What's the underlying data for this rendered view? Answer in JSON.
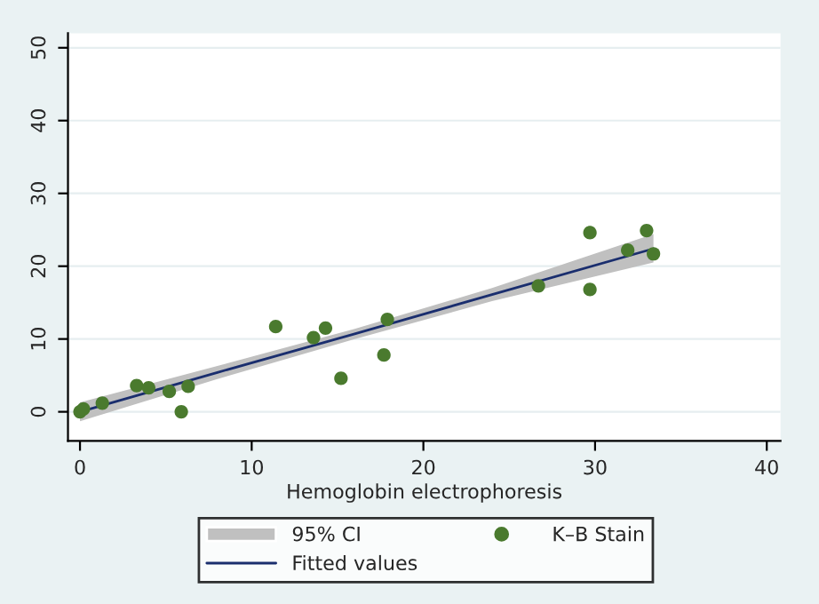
{
  "chart_data": {
    "type": "scatter",
    "xlabel": "Hemoglobin electrophoresis",
    "xlim": [
      -0.7,
      40.8
    ],
    "ylim": [
      -4,
      52
    ],
    "xticks": [
      0,
      10,
      20,
      30,
      40
    ],
    "yticks": [
      0,
      10,
      20,
      30,
      40,
      50
    ],
    "grid": "y",
    "legend": "bottom",
    "annotations": [
      "95% CI"
    ],
    "series": [
      {
        "name": "Fitted values",
        "type": "line",
        "color": "#1a2e6e",
        "x": [
          0,
          8,
          16,
          24,
          33.4
        ],
        "values": [
          0,
          5.4,
          10.7,
          16.1,
          22.4
        ],
        "lower": [
          -1.3,
          4.5,
          10.0,
          15.2,
          20.5
        ],
        "upper": [
          1.3,
          6.3,
          11.4,
          17.0,
          24.4
        ]
      },
      {
        "name": "K–B Stain",
        "color": "#4a7a2e",
        "marker": "circle",
        "x": [
          0,
          0.2,
          1.3,
          3.3,
          4.0,
          5.2,
          5.9,
          6.3,
          11.4,
          13.6,
          14.3,
          15.2,
          17.7,
          17.9,
          26.7,
          29.7,
          29.7,
          31.9,
          33.0,
          33.4
        ],
        "values": [
          0,
          0.4,
          1.2,
          3.6,
          3.3,
          2.8,
          0,
          3.5,
          11.7,
          10.2,
          11.5,
          4.6,
          7.8,
          12.7,
          17.3,
          24.6,
          16.8,
          22.2,
          24.9,
          21.7
        ]
      }
    ]
  }
}
